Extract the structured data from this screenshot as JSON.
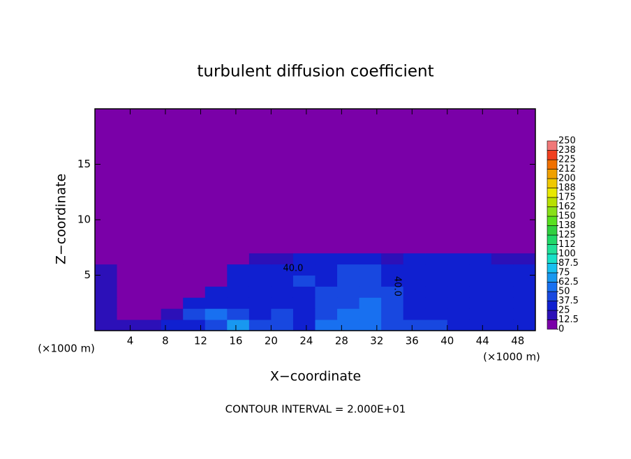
{
  "chart_data": {
    "type": "contour",
    "title": "turbulent diffusion coefficient",
    "x_label": "X−coordinate",
    "y_label": "Z−coordinate",
    "x_unit": "(×1000 m)",
    "footer": "CONTOUR INTERVAL = 2.000E+01",
    "xlim": [
      0,
      50
    ],
    "ylim": [
      0,
      20
    ],
    "xticks": [
      4,
      8,
      12,
      16,
      20,
      24,
      28,
      32,
      36,
      40,
      44,
      48
    ],
    "yticks": [
      5,
      10,
      15
    ],
    "x_edges": [
      0,
      2.5,
      5,
      7.5,
      10,
      12.5,
      15,
      17.5,
      20,
      22.5,
      25,
      27.5,
      30,
      32.5,
      35,
      37.5,
      40,
      42.5,
      45,
      47.5,
      50
    ],
    "z_edges": [
      0,
      1,
      2,
      3,
      4,
      5,
      6,
      7,
      20
    ],
    "values": [
      [
        20,
        15,
        15,
        25,
        35,
        45,
        70,
        40,
        45,
        35,
        50,
        55,
        60,
        45,
        40,
        40,
        35,
        30,
        30,
        30
      ],
      [
        20,
        12,
        10,
        20,
        40,
        50,
        40,
        30,
        40,
        35,
        45,
        50,
        55,
        45,
        35,
        35,
        30,
        30,
        30,
        25
      ],
      [
        15,
        10,
        5,
        10,
        30,
        35,
        30,
        25,
        35,
        30,
        45,
        45,
        50,
        45,
        35,
        30,
        30,
        30,
        30,
        30
      ],
      [
        15,
        5,
        5,
        5,
        5,
        25,
        30,
        30,
        35,
        35,
        40,
        45,
        45,
        40,
        35,
        30,
        30,
        30,
        35,
        30
      ],
      [
        20,
        5,
        5,
        5,
        5,
        5,
        30,
        30,
        35,
        40,
        35,
        45,
        40,
        35,
        30,
        35,
        35,
        30,
        30,
        30
      ],
      [
        15,
        5,
        0,
        0,
        0,
        0,
        25,
        30,
        30,
        35,
        35,
        40,
        40,
        30,
        35,
        35,
        30,
        30,
        30,
        25
      ],
      [
        0,
        0,
        0,
        0,
        0,
        0,
        0,
        15,
        20,
        30,
        25,
        25,
        30,
        20,
        25,
        30,
        25,
        25,
        20,
        15
      ],
      [
        0,
        0,
        0,
        0,
        0,
        0,
        0,
        0,
        0,
        0,
        0,
        0,
        0,
        0,
        0,
        0,
        0,
        0,
        0,
        0
      ]
    ],
    "levels": [
      0,
      12.5,
      25,
      37.5,
      50,
      62.5,
      75,
      87.5,
      100,
      {
        "value": 112.5,
        "label": "112"
      },
      125,
      {
        "value": 137.5,
        "label": "138"
      },
      150,
      {
        "value": 162.5,
        "label": "162"
      },
      175,
      {
        "value": 187.5,
        "label": "188"
      },
      200,
      {
        "value": 212.5,
        "label": "212"
      },
      225,
      {
        "value": 237.5,
        "label": "238"
      },
      250
    ],
    "colors": [
      "#7a00a8",
      "#2c10b8",
      "#1020d0",
      "#1848e0",
      "#1870f0",
      "#1898f0",
      "#18c0f0",
      "#18e0c8",
      "#20e098",
      "#20d868",
      "#30d040",
      "#58e020",
      "#88e018",
      "#b8e000",
      "#e8e800",
      "#f0c800",
      "#f0a000",
      "#f07000",
      "#f04020",
      "#f07878"
    ],
    "annotations": [
      {
        "text": "40.0",
        "x": 22.5,
        "z": 5.6
      },
      {
        "text": "40.0",
        "x": 34.3,
        "z": 4.0
      }
    ]
  }
}
